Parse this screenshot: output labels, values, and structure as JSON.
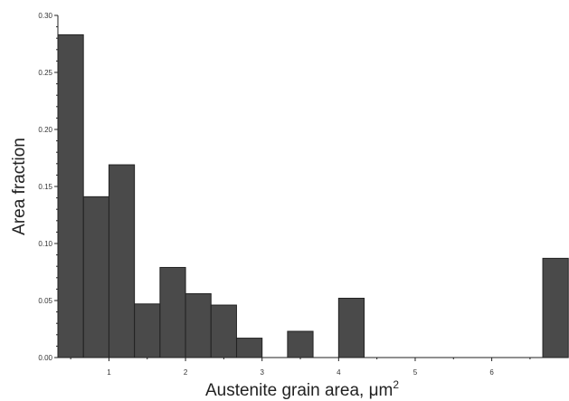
{
  "chart_data": {
    "type": "bar",
    "xlabel": "Austenite grain area, μm",
    "xlabel_superscript": "2",
    "ylabel": "Area fraction",
    "xlim": [
      0.333,
      6.95
    ],
    "ylim": [
      0,
      0.3
    ],
    "x_ticks": [
      1,
      2,
      3,
      4,
      5,
      6
    ],
    "x_tick_labels": [
      "1",
      "2",
      "3",
      "4",
      "5",
      "6"
    ],
    "y_ticks": [
      0,
      0.05,
      0.1,
      0.15,
      0.2,
      0.25,
      0.3
    ],
    "y_tick_labels": [
      "0.00",
      "0.05",
      "0.10",
      "0.15",
      "0.20",
      "0.25",
      "0.30"
    ],
    "grid": false,
    "bar_width": 0.333,
    "bars": [
      {
        "x_start": 0.333,
        "value": 0.283
      },
      {
        "x_start": 0.667,
        "value": 0.141
      },
      {
        "x_start": 1.0,
        "value": 0.169
      },
      {
        "x_start": 1.333,
        "value": 0.047
      },
      {
        "x_start": 1.667,
        "value": 0.079
      },
      {
        "x_start": 2.0,
        "value": 0.056
      },
      {
        "x_start": 2.333,
        "value": 0.046
      },
      {
        "x_start": 2.667,
        "value": 0.017
      },
      {
        "x_start": 3.333,
        "value": 0.023
      },
      {
        "x_start": 4.0,
        "value": 0.052
      },
      {
        "x_start": 6.667,
        "value": 0.087
      }
    ],
    "colors": {
      "bar_fill": "#4a4a4a",
      "bar_edge": "#222222",
      "axis": "#222222"
    }
  }
}
